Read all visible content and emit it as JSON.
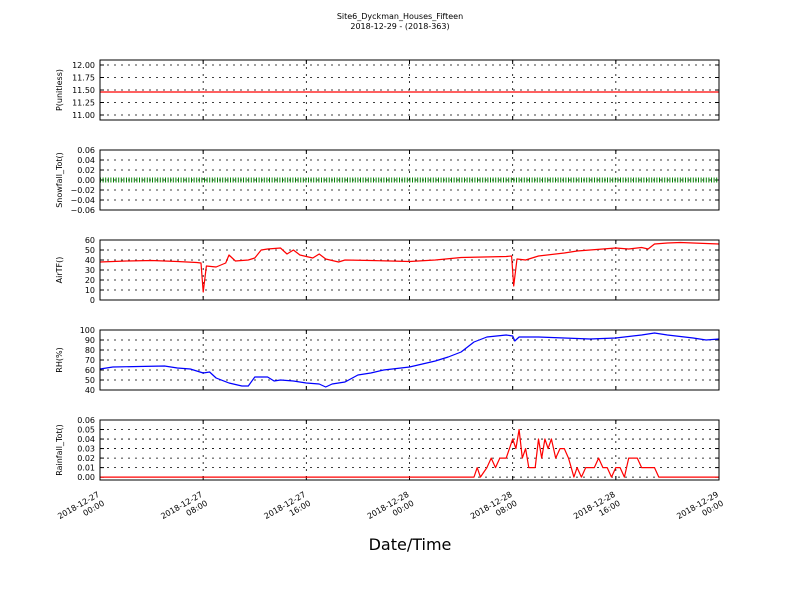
{
  "chart_data": {
    "title": [
      "Site6_Dyckman_Houses_Fifteen",
      "2018-12-29 - (2018-363)"
    ],
    "xlabel": "Date/Time",
    "x_range": [
      "2018-12-27 00:00",
      "2018-12-29 00:00"
    ],
    "x_ticks": [
      {
        "t": "2018-12-27 00:00",
        "label": [
          "2018-12-27",
          "00:00"
        ]
      },
      {
        "t": "2018-12-27 08:00",
        "label": [
          "2018-12-27",
          "08:00"
        ]
      },
      {
        "t": "2018-12-27 16:00",
        "label": [
          "2018-12-27",
          "16:00"
        ]
      },
      {
        "t": "2018-12-28 00:00",
        "label": [
          "2018-12-28",
          "00:00"
        ]
      },
      {
        "t": "2018-12-28 08:00",
        "label": [
          "2018-12-28",
          "08:00"
        ]
      },
      {
        "t": "2018-12-28 16:00",
        "label": [
          "2018-12-28",
          "16:00"
        ]
      },
      {
        "t": "2018-12-29 00:00",
        "label": [
          "2018-12-29",
          "00:00"
        ]
      }
    ],
    "grid": true,
    "panels": [
      {
        "type": "line",
        "ylabel": "P(unitless)",
        "ylim": [
          10.9,
          12.1
        ],
        "yticks": [
          11.0,
          11.25,
          11.5,
          11.75,
          12.0
        ],
        "ytick_labels": [
          "11.00",
          "11.25",
          "11.50",
          "11.75",
          "12.00"
        ],
        "color": "#ff0000",
        "series": [
          {
            "values": [
              [
                "2018-12-27 00:00",
                11.46
              ],
              [
                "2018-12-29 00:00",
                11.46
              ]
            ]
          }
        ]
      },
      {
        "type": "line",
        "ylabel": "Snowfall_Tot()",
        "ylim": [
          -0.06,
          0.06
        ],
        "yticks": [
          -0.06,
          -0.04,
          -0.02,
          0.0,
          0.02,
          0.04,
          0.06
        ],
        "ytick_labels": [
          "−0.06",
          "−0.04",
          "−0.02",
          "0.00",
          "0.02",
          "0.04",
          "0.06"
        ],
        "color": "#008000",
        "marker": "dot",
        "series": [
          {
            "values": [
              [
                "2018-12-27 00:00",
                0.0
              ],
              [
                "2018-12-29 00:00",
                0.0
              ]
            ]
          }
        ]
      },
      {
        "type": "line",
        "ylabel": "AirTF()",
        "ylim": [
          0,
          60
        ],
        "yticks": [
          0,
          10,
          20,
          30,
          40,
          50,
          60
        ],
        "ytick_labels": [
          "0",
          "10",
          "20",
          "30",
          "40",
          "50",
          "60"
        ],
        "color": "#ff0000",
        "series": [
          {
            "values": [
              [
                "2018-12-27 00:00",
                38
              ],
              [
                "2018-12-27 02:00",
                39
              ],
              [
                "2018-12-27 04:00",
                39.5
              ],
              [
                "2018-12-27 06:00",
                38.5
              ],
              [
                "2018-12-27 07:30",
                37.5
              ],
              [
                "2018-12-27 07:50",
                37
              ],
              [
                "2018-12-27 08:00",
                8
              ],
              [
                "2018-12-27 08:15",
                34
              ],
              [
                "2018-12-27 09:00",
                33
              ],
              [
                "2018-12-27 09:45",
                37
              ],
              [
                "2018-12-27 10:00",
                45
              ],
              [
                "2018-12-27 10:30",
                39
              ],
              [
                "2018-12-27 11:30",
                40
              ],
              [
                "2018-12-27 12:00",
                42
              ],
              [
                "2018-12-27 12:30",
                50
              ],
              [
                "2018-12-27 13:00",
                51
              ],
              [
                "2018-12-27 14:00",
                52
              ],
              [
                "2018-12-27 14:30",
                46
              ],
              [
                "2018-12-27 15:00",
                50
              ],
              [
                "2018-12-27 15:30",
                45
              ],
              [
                "2018-12-27 16:30",
                42
              ],
              [
                "2018-12-27 17:00",
                46
              ],
              [
                "2018-12-27 17:30",
                41
              ],
              [
                "2018-12-27 18:30",
                38
              ],
              [
                "2018-12-27 19:00",
                40
              ],
              [
                "2018-12-27 21:00",
                39.5
              ],
              [
                "2018-12-28 00:00",
                38.5
              ],
              [
                "2018-12-28 02:00",
                40
              ],
              [
                "2018-12-28 04:00",
                42.5
              ],
              [
                "2018-12-28 07:30",
                43.5
              ],
              [
                "2018-12-28 07:55",
                44
              ],
              [
                "2018-12-28 08:05",
                14
              ],
              [
                "2018-12-28 08:20",
                41
              ],
              [
                "2018-12-28 09:00",
                40
              ],
              [
                "2018-12-28 10:00",
                44
              ],
              [
                "2018-12-28 12:00",
                47
              ],
              [
                "2018-12-28 13:00",
                49
              ],
              [
                "2018-12-28 14:00",
                50
              ],
              [
                "2018-12-28 15:00",
                51
              ],
              [
                "2018-12-28 16:00",
                52
              ],
              [
                "2018-12-28 17:00",
                51
              ],
              [
                "2018-12-28 18:00",
                52.5
              ],
              [
                "2018-12-28 18:30",
                51
              ],
              [
                "2018-12-28 19:00",
                56
              ],
              [
                "2018-12-28 20:00",
                57
              ],
              [
                "2018-12-28 21:00",
                57.5
              ],
              [
                "2018-12-29 00:00",
                56
              ]
            ]
          }
        ]
      },
      {
        "type": "line",
        "ylabel": "RH(%)",
        "ylim": [
          40,
          100
        ],
        "yticks": [
          40,
          50,
          60,
          70,
          80,
          90,
          100
        ],
        "ytick_labels": [
          "40",
          "50",
          "60",
          "70",
          "80",
          "90",
          "100"
        ],
        "color": "#0000ff",
        "series": [
          {
            "values": [
              [
                "2018-12-27 00:00",
                61
              ],
              [
                "2018-12-27 01:00",
                63
              ],
              [
                "2018-12-27 03:00",
                63.5
              ],
              [
                "2018-12-27 05:00",
                64
              ],
              [
                "2018-12-27 06:00",
                62
              ],
              [
                "2018-12-27 07:00",
                61
              ],
              [
                "2018-12-27 08:00",
                57
              ],
              [
                "2018-12-27 08:30",
                58
              ],
              [
                "2018-12-27 09:00",
                52
              ],
              [
                "2018-12-27 10:00",
                47
              ],
              [
                "2018-12-27 11:00",
                44
              ],
              [
                "2018-12-27 11:30",
                44
              ],
              [
                "2018-12-27 12:00",
                53
              ],
              [
                "2018-12-27 13:00",
                53
              ],
              [
                "2018-12-27 13:30",
                49
              ],
              [
                "2018-12-27 14:00",
                50
              ],
              [
                "2018-12-27 15:00",
                49
              ],
              [
                "2018-12-27 16:00",
                47
              ],
              [
                "2018-12-27 17:00",
                46
              ],
              [
                "2018-12-27 17:30",
                43
              ],
              [
                "2018-12-27 18:00",
                46
              ],
              [
                "2018-12-27 19:00",
                48
              ],
              [
                "2018-12-27 20:00",
                55
              ],
              [
                "2018-12-27 21:00",
                57
              ],
              [
                "2018-12-27 22:00",
                60
              ],
              [
                "2018-12-28 00:00",
                63
              ],
              [
                "2018-12-28 01:00",
                66
              ],
              [
                "2018-12-28 02:00",
                69
              ],
              [
                "2018-12-28 03:00",
                73
              ],
              [
                "2018-12-28 04:00",
                78
              ],
              [
                "2018-12-28 05:00",
                88
              ],
              [
                "2018-12-28 06:00",
                93
              ],
              [
                "2018-12-28 07:30",
                95
              ],
              [
                "2018-12-28 08:00",
                94
              ],
              [
                "2018-12-28 08:10",
                89
              ],
              [
                "2018-12-28 08:30",
                93
              ],
              [
                "2018-12-28 10:00",
                93
              ],
              [
                "2018-12-28 12:00",
                92
              ],
              [
                "2018-12-28 14:00",
                91
              ],
              [
                "2018-12-28 16:00",
                92
              ],
              [
                "2018-12-28 18:00",
                95
              ],
              [
                "2018-12-28 19:00",
                97
              ],
              [
                "2018-12-28 20:00",
                95
              ],
              [
                "2018-12-28 22:00",
                92
              ],
              [
                "2018-12-28 23:00",
                90
              ],
              [
                "2018-12-29 00:00",
                91
              ]
            ]
          }
        ]
      },
      {
        "type": "line",
        "ylabel": "Rainfall_Tot()",
        "ylim": [
          -0.003,
          0.06
        ],
        "yticks": [
          0.0,
          0.01,
          0.02,
          0.03,
          0.04,
          0.05,
          0.06
        ],
        "ytick_labels": [
          "0.00",
          "0.01",
          "0.02",
          "0.03",
          "0.04",
          "0.05",
          "0.06"
        ],
        "color": "#ff0000",
        "series": [
          {
            "values": [
              [
                "2018-12-27 00:00",
                0
              ],
              [
                "2018-12-28 05:00",
                0
              ],
              [
                "2018-12-28 05:15",
                0.01
              ],
              [
                "2018-12-28 05:30",
                0
              ],
              [
                "2018-12-28 06:00",
                0.01
              ],
              [
                "2018-12-28 06:20",
                0.02
              ],
              [
                "2018-12-28 06:40",
                0.01
              ],
              [
                "2018-12-28 07:00",
                0.02
              ],
              [
                "2018-12-28 07:30",
                0.02
              ],
              [
                "2018-12-28 08:00",
                0.04
              ],
              [
                "2018-12-28 08:15",
                0.03
              ],
              [
                "2018-12-28 08:30",
                0.05
              ],
              [
                "2018-12-28 08:45",
                0.02
              ],
              [
                "2018-12-28 09:00",
                0.03
              ],
              [
                "2018-12-28 09:15",
                0.01
              ],
              [
                "2018-12-28 09:45",
                0.01
              ],
              [
                "2018-12-28 10:00",
                0.04
              ],
              [
                "2018-12-28 10:15",
                0.02
              ],
              [
                "2018-12-28 10:30",
                0.04
              ],
              [
                "2018-12-28 10:45",
                0.03
              ],
              [
                "2018-12-28 11:00",
                0.04
              ],
              [
                "2018-12-28 11:20",
                0.02
              ],
              [
                "2018-12-28 11:40",
                0.03
              ],
              [
                "2018-12-28 12:00",
                0.03
              ],
              [
                "2018-12-28 12:20",
                0.02
              ],
              [
                "2018-12-28 12:45",
                0.0
              ],
              [
                "2018-12-28 13:00",
                0.01
              ],
              [
                "2018-12-28 13:20",
                0.0
              ],
              [
                "2018-12-28 13:40",
                0.01
              ],
              [
                "2018-12-28 14:20",
                0.01
              ],
              [
                "2018-12-28 14:40",
                0.02
              ],
              [
                "2018-12-28 15:00",
                0.01
              ],
              [
                "2018-12-28 15:20",
                0.01
              ],
              [
                "2018-12-28 15:40",
                0.0
              ],
              [
                "2018-12-28 16:00",
                0.01
              ],
              [
                "2018-12-28 16:20",
                0.01
              ],
              [
                "2018-12-28 16:40",
                0.0
              ],
              [
                "2018-12-28 17:00",
                0.02
              ],
              [
                "2018-12-28 17:40",
                0.02
              ],
              [
                "2018-12-28 18:00",
                0.01
              ],
              [
                "2018-12-28 19:00",
                0.01
              ],
              [
                "2018-12-28 19:20",
                0.0
              ],
              [
                "2018-12-29 00:00",
                0.0
              ]
            ]
          }
        ]
      }
    ]
  }
}
